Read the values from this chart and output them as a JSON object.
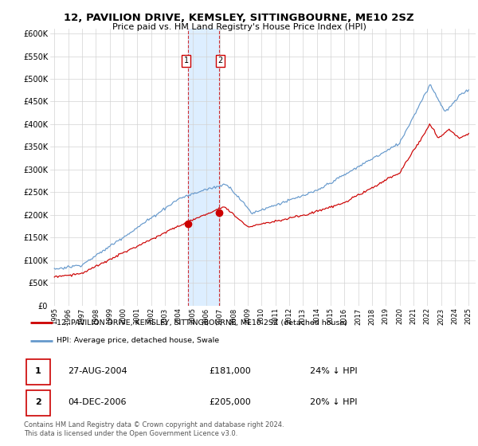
{
  "title": "12, PAVILION DRIVE, KEMSLEY, SITTINGBOURNE, ME10 2SZ",
  "subtitle": "Price paid vs. HM Land Registry's House Price Index (HPI)",
  "ylabel_ticks": [
    "£0",
    "£50K",
    "£100K",
    "£150K",
    "£200K",
    "£250K",
    "£300K",
    "£350K",
    "£400K",
    "£450K",
    "£500K",
    "£550K",
    "£600K"
  ],
  "ytick_vals": [
    0,
    50000,
    100000,
    150000,
    200000,
    250000,
    300000,
    350000,
    400000,
    450000,
    500000,
    550000,
    600000
  ],
  "x_start_year": 1995,
  "x_end_year": 2025,
  "legend_line1": "12, PAVILION DRIVE, KEMSLEY, SITTINGBOURNE, ME10 2SZ (detached house)",
  "legend_line2": "HPI: Average price, detached house, Swale",
  "transaction1_date": "27-AUG-2004",
  "transaction1_price": "£181,000",
  "transaction1_hpi": "24% ↓ HPI",
  "transaction2_date": "04-DEC-2006",
  "transaction2_price": "£205,000",
  "transaction2_hpi": "20% ↓ HPI",
  "footer": "Contains HM Land Registry data © Crown copyright and database right 2024.\nThis data is licensed under the Open Government Licence v3.0.",
  "hpi_color": "#6699cc",
  "price_color": "#cc0000",
  "shade_color": "#ddeeff",
  "marker1_year": 2004.65,
  "marker1_price": 181000,
  "marker2_year": 2006.92,
  "marker2_price": 205000
}
